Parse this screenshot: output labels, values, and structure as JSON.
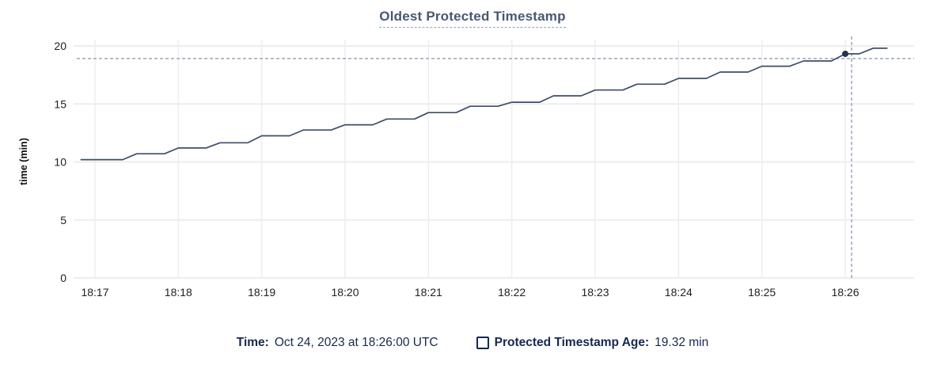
{
  "title": "Oldest Protected Timestamp",
  "colors": {
    "line": "#3e4d69",
    "dot": "#26334f",
    "crosshair": "#a0aebf",
    "grid": "#ededed",
    "axis_text": "#1f1f1f",
    "title_text": "#475872",
    "legend_text": "#16294f"
  },
  "legend": {
    "time_label": "Time:",
    "time_value": "Oct 24, 2023 at 18:26:00 UTC",
    "checkbox_icon": "square-outline",
    "series_label": "Protected Timestamp Age:",
    "series_value": "19.32 min"
  },
  "chart_data": {
    "type": "line",
    "title": "Oldest Protected Timestamp",
    "xlabel": "",
    "ylabel": "time (min)",
    "ylim": [
      0,
      20
    ],
    "yticks": [
      0,
      5,
      10,
      15,
      20
    ],
    "xticks": [
      "18:17",
      "18:18",
      "18:19",
      "18:20",
      "18:21",
      "18:22",
      "18:23",
      "18:24",
      "18:25",
      "18:26"
    ],
    "x_domain": [
      "18:16:45",
      "18:26:50"
    ],
    "grid": true,
    "legend_position": "bottom",
    "hover_point": {
      "x": "18:26:00",
      "y": 19.32
    },
    "series": [
      {
        "name": "Protected Timestamp Age",
        "unit": "min",
        "points": [
          [
            "18:16:50",
            10.2
          ],
          [
            "18:17:00",
            10.2
          ],
          [
            "18:17:10",
            10.2
          ],
          [
            "18:17:20",
            10.2
          ],
          [
            "18:17:30",
            10.7
          ],
          [
            "18:17:40",
            10.7
          ],
          [
            "18:17:50",
            10.7
          ],
          [
            "18:18:00",
            11.2
          ],
          [
            "18:18:10",
            11.2
          ],
          [
            "18:18:20",
            11.2
          ],
          [
            "18:18:30",
            11.65
          ],
          [
            "18:18:40",
            11.65
          ],
          [
            "18:18:50",
            11.65
          ],
          [
            "18:19:00",
            12.25
          ],
          [
            "18:19:10",
            12.25
          ],
          [
            "18:19:20",
            12.25
          ],
          [
            "18:19:30",
            12.75
          ],
          [
            "18:19:40",
            12.75
          ],
          [
            "18:19:50",
            12.75
          ],
          [
            "18:20:00",
            13.2
          ],
          [
            "18:20:10",
            13.2
          ],
          [
            "18:20:20",
            13.2
          ],
          [
            "18:20:30",
            13.7
          ],
          [
            "18:20:40",
            13.7
          ],
          [
            "18:20:50",
            13.7
          ],
          [
            "18:21:00",
            14.25
          ],
          [
            "18:21:10",
            14.25
          ],
          [
            "18:21:20",
            14.25
          ],
          [
            "18:21:30",
            14.8
          ],
          [
            "18:21:40",
            14.8
          ],
          [
            "18:21:50",
            14.8
          ],
          [
            "18:22:00",
            15.15
          ],
          [
            "18:22:10",
            15.15
          ],
          [
            "18:22:20",
            15.15
          ],
          [
            "18:22:30",
            15.7
          ],
          [
            "18:22:40",
            15.7
          ],
          [
            "18:22:50",
            15.7
          ],
          [
            "18:23:00",
            16.2
          ],
          [
            "18:23:10",
            16.2
          ],
          [
            "18:23:20",
            16.2
          ],
          [
            "18:23:30",
            16.7
          ],
          [
            "18:23:40",
            16.7
          ],
          [
            "18:23:50",
            16.7
          ],
          [
            "18:24:00",
            17.2
          ],
          [
            "18:24:10",
            17.2
          ],
          [
            "18:24:20",
            17.2
          ],
          [
            "18:24:30",
            17.75
          ],
          [
            "18:24:40",
            17.75
          ],
          [
            "18:24:50",
            17.75
          ],
          [
            "18:25:00",
            18.25
          ],
          [
            "18:25:10",
            18.25
          ],
          [
            "18:25:20",
            18.25
          ],
          [
            "18:25:30",
            18.7
          ],
          [
            "18:25:40",
            18.7
          ],
          [
            "18:25:50",
            18.7
          ],
          [
            "18:26:00",
            19.32
          ],
          [
            "18:26:10",
            19.32
          ],
          [
            "18:26:20",
            19.8
          ],
          [
            "18:26:30",
            19.8
          ]
        ]
      }
    ]
  }
}
